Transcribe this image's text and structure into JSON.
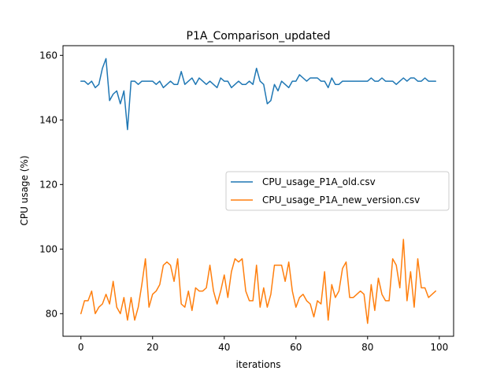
{
  "chart_data": {
    "type": "line",
    "title": "P1A_Comparison_updated",
    "xlabel": "iterations",
    "ylabel": "CPU usage (%)",
    "xlim": [
      -5,
      104
    ],
    "ylim": [
      73,
      163
    ],
    "xticks": [
      0,
      20,
      40,
      60,
      80,
      100
    ],
    "yticks": [
      80,
      100,
      120,
      140,
      160
    ],
    "grid": false,
    "legend_position": "center-right",
    "series": [
      {
        "name": "CPU_usage_P1A_old.csv",
        "color": "#1f77b4",
        "x": [
          0,
          1,
          2,
          3,
          4,
          5,
          6,
          7,
          8,
          9,
          10,
          11,
          12,
          13,
          14,
          15,
          16,
          17,
          18,
          19,
          20,
          21,
          22,
          23,
          24,
          25,
          26,
          27,
          28,
          29,
          30,
          31,
          32,
          33,
          34,
          35,
          36,
          37,
          38,
          39,
          40,
          41,
          42,
          43,
          44,
          45,
          46,
          47,
          48,
          49,
          50,
          51,
          52,
          53,
          54,
          55,
          56,
          57,
          58,
          59,
          60,
          61,
          62,
          63,
          64,
          65,
          66,
          67,
          68,
          69,
          70,
          71,
          72,
          73,
          74,
          75,
          76,
          77,
          78,
          79,
          80,
          81,
          82,
          83,
          84,
          85,
          86,
          87,
          88,
          89,
          90,
          91,
          92,
          93,
          94,
          95,
          96,
          97,
          98,
          99
        ],
        "values": [
          152,
          152,
          151,
          152,
          150,
          151,
          156,
          159,
          146,
          148,
          149,
          145,
          149,
          137,
          152,
          152,
          151,
          152,
          152,
          152,
          152,
          151,
          152,
          150,
          151,
          152,
          151,
          151,
          155,
          151,
          152,
          153,
          151,
          153,
          152,
          151,
          152,
          151,
          150,
          153,
          152,
          152,
          150,
          151,
          152,
          151,
          151,
          152,
          151,
          156,
          152,
          151,
          145,
          146,
          151,
          149,
          152,
          151,
          150,
          152,
          152,
          154,
          153,
          152,
          153,
          153,
          153,
          152,
          152,
          150,
          153,
          151,
          151,
          152,
          152,
          152,
          152,
          152,
          152,
          152,
          152,
          153,
          152,
          152,
          153,
          152,
          152,
          152,
          151,
          152,
          153,
          152,
          153,
          153,
          152,
          152,
          153,
          152,
          152,
          152
        ]
      },
      {
        "name": "CPU_usage_P1A_new_version.csv",
        "color": "#ff7f0e",
        "x": [
          0,
          1,
          2,
          3,
          4,
          5,
          6,
          7,
          8,
          9,
          10,
          11,
          12,
          13,
          14,
          15,
          16,
          17,
          18,
          19,
          20,
          21,
          22,
          23,
          24,
          25,
          26,
          27,
          28,
          29,
          30,
          31,
          32,
          33,
          34,
          35,
          36,
          37,
          38,
          39,
          40,
          41,
          42,
          43,
          44,
          45,
          46,
          47,
          48,
          49,
          50,
          51,
          52,
          53,
          54,
          55,
          56,
          57,
          58,
          59,
          60,
          61,
          62,
          63,
          64,
          65,
          66,
          67,
          68,
          69,
          70,
          71,
          72,
          73,
          74,
          75,
          76,
          77,
          78,
          79,
          80,
          81,
          82,
          83,
          84,
          85,
          86,
          87,
          88,
          89,
          90,
          91,
          92,
          93,
          94,
          95,
          96,
          97,
          98,
          99
        ],
        "values": [
          80,
          84,
          84,
          87,
          80,
          82,
          83,
          86,
          83,
          90,
          82,
          80,
          85,
          78,
          85,
          78,
          82,
          89,
          97,
          82,
          86,
          87,
          89,
          95,
          96,
          95,
          90,
          97,
          83,
          82,
          87,
          81,
          88,
          87,
          87,
          88,
          95,
          87,
          83,
          87,
          92,
          85,
          93,
          97,
          96,
          97,
          87,
          84,
          84,
          95,
          82,
          88,
          82,
          86,
          95,
          95,
          95,
          90,
          96,
          87,
          82,
          85,
          86,
          84,
          83,
          79,
          84,
          83,
          93,
          78,
          89,
          85,
          87,
          94,
          96,
          85,
          85,
          86,
          87,
          86,
          77,
          89,
          81,
          91,
          86,
          84,
          84,
          97,
          95,
          88,
          103,
          84,
          93,
          82,
          97,
          88,
          88,
          85,
          86,
          87
        ]
      }
    ]
  }
}
